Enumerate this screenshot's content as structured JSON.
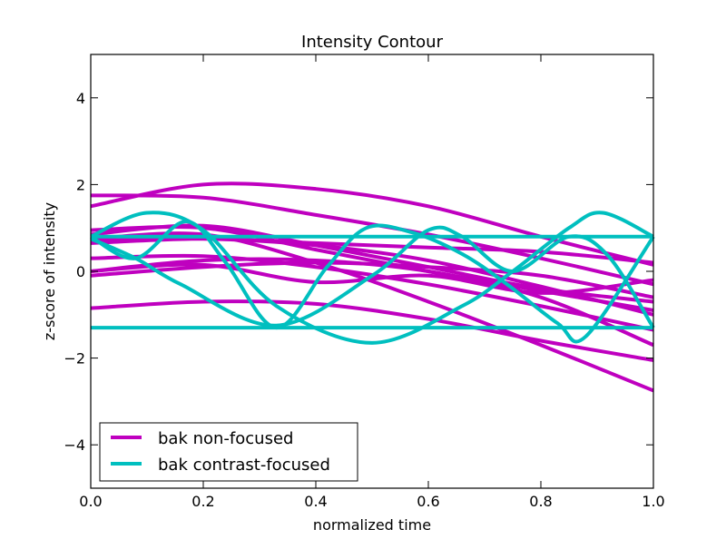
{
  "chart_data": {
    "type": "line",
    "title": "Intensity Contour",
    "xlabel": "normalized time",
    "ylabel": "z-score of intensity",
    "xlim": [
      0.0,
      1.0
    ],
    "ylim": [
      -5,
      5
    ],
    "xticks": [
      0.0,
      0.2,
      0.4,
      0.6,
      0.8,
      1.0
    ],
    "xtick_labels": [
      "0.0",
      "0.2",
      "0.4",
      "0.6",
      "0.8",
      "1.0"
    ],
    "yticks": [
      4,
      2,
      0,
      -2,
      -4
    ],
    "ytick_labels": [
      "4",
      "2",
      "0",
      "−2",
      "−4"
    ],
    "grid": false,
    "legend_position": "lower-left",
    "legend": [
      {
        "label": "bak non-focused",
        "color": "#bf00bf"
      },
      {
        "label": "bak contrast-focused",
        "color": "#00bfbf"
      }
    ],
    "series": [
      {
        "group": 0,
        "x": [
          0.0,
          0.2,
          0.4,
          0.6,
          0.8,
          1.0
        ],
        "y": [
          1.5,
          2.0,
          1.9,
          1.5,
          0.8,
          0.15
        ]
      },
      {
        "group": 0,
        "x": [
          0.0,
          0.2,
          0.4,
          0.6,
          0.8,
          1.0
        ],
        "y": [
          1.75,
          1.7,
          1.3,
          0.85,
          0.3,
          -0.3
        ]
      },
      {
        "group": 0,
        "x": [
          0.0,
          0.2,
          0.4,
          0.6,
          0.8,
          1.0
        ],
        "y": [
          0.95,
          1.0,
          0.5,
          0.0,
          -0.45,
          -0.9
        ]
      },
      {
        "group": 0,
        "x": [
          0.0,
          0.2,
          0.4,
          0.6,
          0.8,
          1.0
        ],
        "y": [
          0.85,
          1.05,
          0.6,
          0.1,
          -0.4,
          -0.7
        ]
      },
      {
        "group": 0,
        "x": [
          0.0,
          0.2,
          0.4,
          0.6,
          0.8,
          1.0
        ],
        "y": [
          0.65,
          0.75,
          0.65,
          0.55,
          0.45,
          0.2
        ]
      },
      {
        "group": 0,
        "x": [
          0.0,
          0.2,
          0.4,
          0.6,
          0.8,
          1.0
        ],
        "y": [
          0.7,
          0.75,
          0.6,
          0.25,
          -0.35,
          -1.0
        ]
      },
      {
        "group": 0,
        "x": [
          0.0,
          0.2,
          0.4,
          0.6,
          0.8,
          1.0
        ],
        "y": [
          0.0,
          0.25,
          0.25,
          0.0,
          -0.6,
          -1.7
        ]
      },
      {
        "group": 0,
        "x": [
          0.0,
          0.2,
          0.4,
          0.6,
          0.8,
          1.0
        ],
        "y": [
          -0.1,
          0.1,
          0.2,
          0.1,
          -0.1,
          -0.6
        ]
      },
      {
        "group": 0,
        "x": [
          0.0,
          0.2,
          0.4,
          0.6,
          0.8,
          1.0
        ],
        "y": [
          0.3,
          0.35,
          0.1,
          -0.3,
          -0.8,
          -1.35
        ]
      },
      {
        "group": 0,
        "x": [
          0.0,
          0.2,
          0.4,
          0.6,
          0.8,
          1.0
        ],
        "y": [
          0.75,
          0.85,
          0.2,
          -0.7,
          -1.7,
          -2.75
        ]
      },
      {
        "group": 0,
        "x": [
          0.0,
          0.2,
          0.4,
          0.6,
          0.8,
          1.0
        ],
        "y": [
          -0.85,
          -0.7,
          -0.75,
          -1.1,
          -1.6,
          -2.05
        ]
      },
      {
        "group": 0,
        "x": [
          0.0,
          0.2,
          0.4,
          0.6,
          0.8,
          1.0
        ],
        "y": [
          0.0,
          0.15,
          -0.25,
          -0.1,
          -0.5,
          -0.2
        ]
      },
      {
        "group": 1,
        "x": [
          0.0,
          0.1,
          0.2,
          0.33,
          0.5,
          0.66,
          0.75,
          0.85,
          0.91,
          1.0
        ],
        "y": [
          0.8,
          1.35,
          0.95,
          -0.8,
          -1.65,
          -0.8,
          0.0,
          1.0,
          1.35,
          0.8
        ]
      },
      {
        "group": 1,
        "x": [
          0.0,
          0.08,
          0.17,
          0.24,
          0.33,
          0.42,
          0.49,
          0.57,
          0.66,
          0.74,
          0.83,
          0.88,
          1.0
        ],
        "y": [
          0.8,
          0.3,
          1.15,
          0.2,
          -1.3,
          0.1,
          1.0,
          0.9,
          0.4,
          -0.3,
          -1.2,
          -1.5,
          0.8
        ]
      },
      {
        "group": 1,
        "x": [
          0.0,
          0.08,
          0.16,
          0.33,
          0.5,
          0.6,
          0.66,
          0.75,
          0.85,
          0.92,
          1.0
        ],
        "y": [
          0.75,
          0.3,
          -0.3,
          -1.25,
          -0.1,
          0.95,
          0.8,
          0.0,
          0.8,
          0.35,
          -1.3
        ]
      },
      {
        "group": 1,
        "x": [
          0.0,
          1.0
        ],
        "y": [
          0.8,
          0.8
        ]
      },
      {
        "group": 1,
        "x": [
          0.0,
          1.0
        ],
        "y": [
          -1.3,
          -1.3
        ]
      }
    ]
  }
}
